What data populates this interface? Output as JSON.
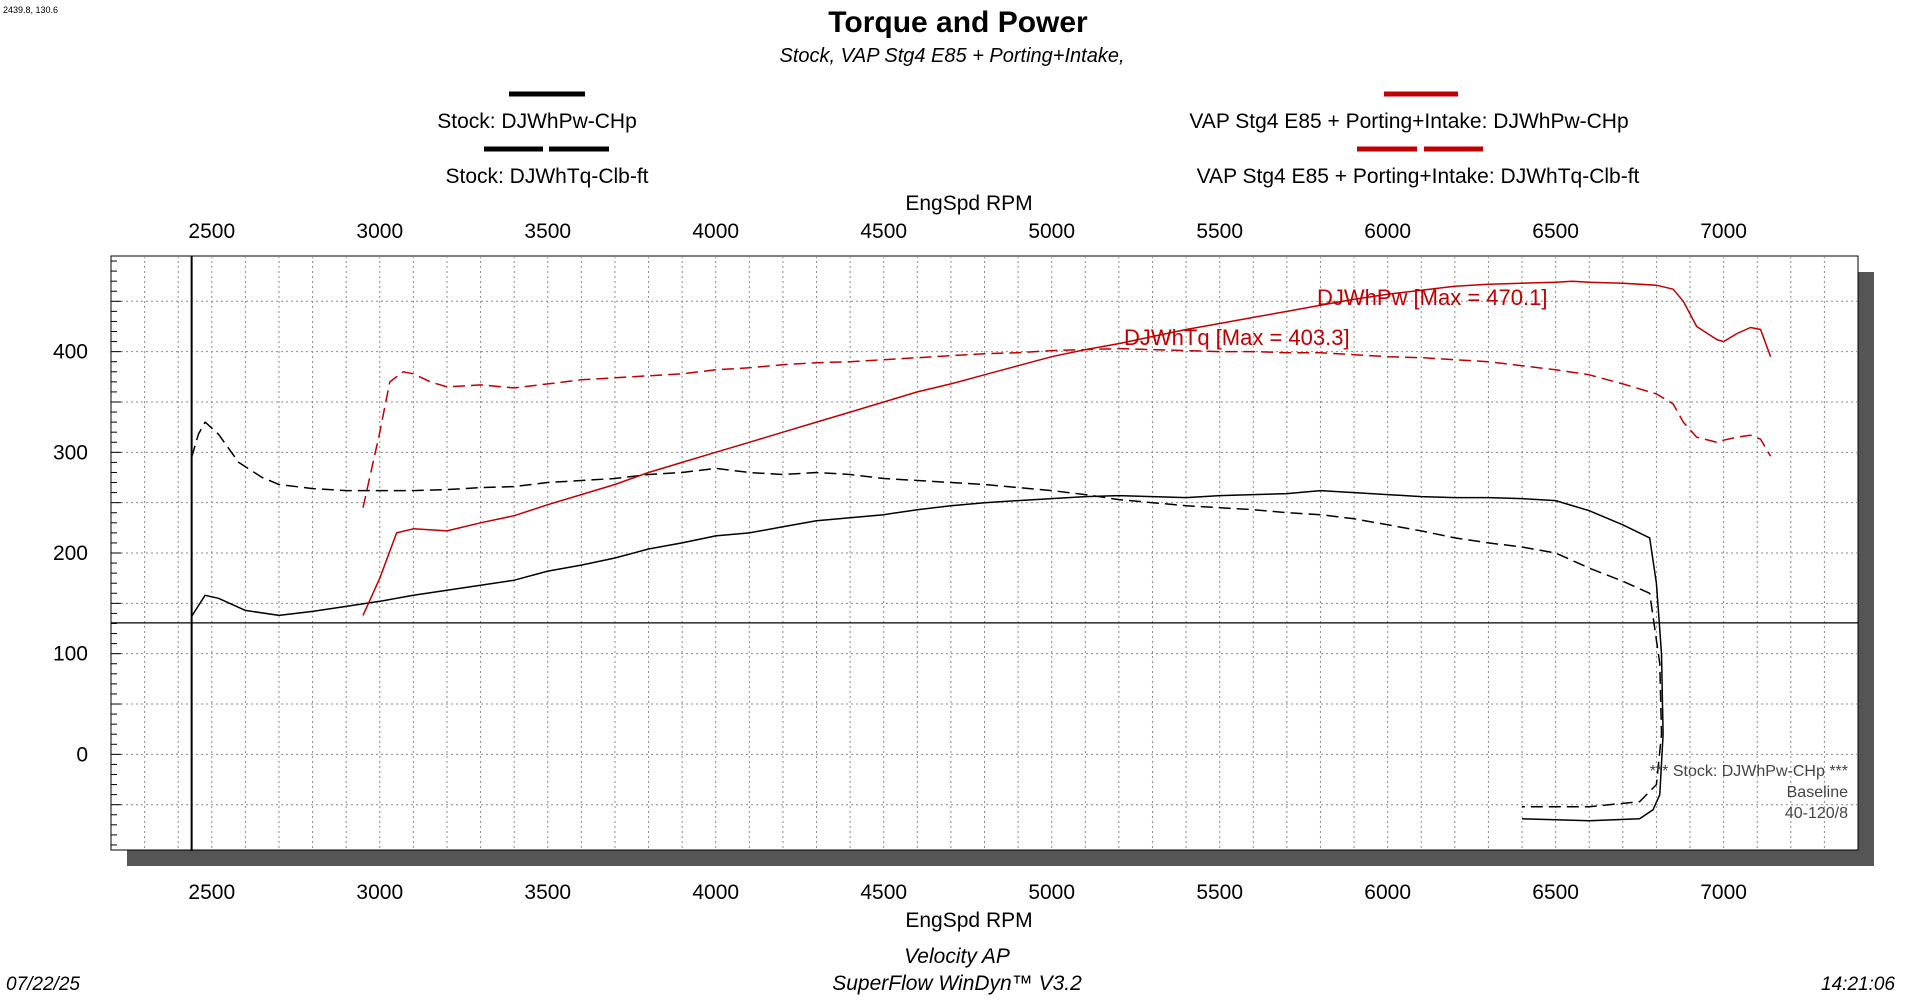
{
  "header": {
    "coords": "2439.8, 130.6",
    "title": "Torque and Power",
    "subtitle": "Stock, VAP Stg4 E85 + Porting+Intake,"
  },
  "legend": {
    "items": [
      {
        "text": "Stock: DJWhPw-CHp",
        "color": "#000000",
        "dash": false
      },
      {
        "text": "Stock: DJWhTq-Clb-ft",
        "color": "#000000",
        "dash": true
      },
      {
        "text": "VAP Stg4 E85 + Porting+Intake: DJWhPw-CHp",
        "color": "#c00000",
        "dash": false
      },
      {
        "text": "VAP Stg4 E85 + Porting+Intake: DJWhTq-Clb-ft",
        "color": "#c00000",
        "dash": true
      }
    ]
  },
  "annotations": {
    "power_max": "DJWhPw [Max = 470.1]",
    "torque_max": "DJWhTq [Max = 403.3]",
    "baseline_note": "*** Stock: DJWhPw-CHp      ***",
    "baseline": "Baseline",
    "ratio": "40-120/8"
  },
  "footer": {
    "date": "07/22/25",
    "line1": "Velocity AP",
    "line2": "SuperFlow WinDyn™ V3.2",
    "time": "14:21:06"
  },
  "chart_data": {
    "type": "line",
    "xlabel": "EngSpd RPM",
    "ylabel": "",
    "xlim": [
      2200,
      7400
    ],
    "ylim": [
      -95,
      495
    ],
    "x_ticks": [
      2500,
      3000,
      3500,
      4000,
      4500,
      5000,
      5500,
      6000,
      6500,
      7000
    ],
    "y_ticks": [
      0,
      100,
      200,
      300,
      400
    ],
    "cursor_x": 2440,
    "cursor_y": 130.6,
    "grid": true,
    "series": [
      {
        "name": "Stock: DJWhPw-CHp",
        "color": "#000000",
        "dash": false,
        "points": [
          [
            2440,
            137
          ],
          [
            2480,
            158
          ],
          [
            2520,
            155
          ],
          [
            2600,
            143
          ],
          [
            2700,
            138
          ],
          [
            2800,
            142
          ],
          [
            2900,
            147
          ],
          [
            3000,
            152
          ],
          [
            3100,
            158
          ],
          [
            3200,
            163
          ],
          [
            3300,
            168
          ],
          [
            3400,
            173
          ],
          [
            3500,
            182
          ],
          [
            3600,
            188
          ],
          [
            3700,
            195
          ],
          [
            3800,
            204
          ],
          [
            3900,
            210
          ],
          [
            4000,
            217
          ],
          [
            4100,
            220
          ],
          [
            4200,
            226
          ],
          [
            4300,
            232
          ],
          [
            4400,
            235
          ],
          [
            4500,
            238
          ],
          [
            4600,
            243
          ],
          [
            4700,
            247
          ],
          [
            4800,
            250
          ],
          [
            4900,
            252
          ],
          [
            5000,
            254
          ],
          [
            5100,
            256
          ],
          [
            5200,
            257
          ],
          [
            5300,
            256
          ],
          [
            5400,
            255
          ],
          [
            5500,
            257
          ],
          [
            5600,
            258
          ],
          [
            5700,
            259
          ],
          [
            5800,
            262
          ],
          [
            5900,
            260
          ],
          [
            6000,
            258
          ],
          [
            6100,
            256
          ],
          [
            6200,
            255
          ],
          [
            6300,
            255
          ],
          [
            6400,
            254
          ],
          [
            6500,
            252
          ],
          [
            6600,
            242
          ],
          [
            6700,
            228
          ],
          [
            6780,
            215
          ],
          [
            6800,
            170
          ],
          [
            6815,
            100
          ],
          [
            6820,
            20
          ],
          [
            6810,
            -40
          ],
          [
            6790,
            -55
          ],
          [
            6750,
            -64
          ],
          [
            6600,
            -66
          ],
          [
            6500,
            -65
          ],
          [
            6400,
            -64
          ]
        ]
      },
      {
        "name": "Stock: DJWhTq-Clb-ft",
        "color": "#000000",
        "dash": true,
        "points": [
          [
            2440,
            295
          ],
          [
            2460,
            318
          ],
          [
            2480,
            330
          ],
          [
            2520,
            318
          ],
          [
            2580,
            290
          ],
          [
            2650,
            275
          ],
          [
            2700,
            268
          ],
          [
            2800,
            264
          ],
          [
            2900,
            262
          ],
          [
            3000,
            262
          ],
          [
            3100,
            262
          ],
          [
            3200,
            263
          ],
          [
            3300,
            265
          ],
          [
            3400,
            266
          ],
          [
            3500,
            270
          ],
          [
            3600,
            272
          ],
          [
            3700,
            274
          ],
          [
            3800,
            278
          ],
          [
            3900,
            280
          ],
          [
            4000,
            284
          ],
          [
            4100,
            280
          ],
          [
            4200,
            278
          ],
          [
            4300,
            280
          ],
          [
            4400,
            278
          ],
          [
            4500,
            274
          ],
          [
            4600,
            272
          ],
          [
            4700,
            270
          ],
          [
            4800,
            268
          ],
          [
            4900,
            265
          ],
          [
            5000,
            262
          ],
          [
            5100,
            258
          ],
          [
            5200,
            253
          ],
          [
            5300,
            250
          ],
          [
            5400,
            247
          ],
          [
            5500,
            245
          ],
          [
            5600,
            243
          ],
          [
            5700,
            240
          ],
          [
            5800,
            238
          ],
          [
            5900,
            234
          ],
          [
            6000,
            228
          ],
          [
            6100,
            222
          ],
          [
            6200,
            215
          ],
          [
            6300,
            210
          ],
          [
            6400,
            206
          ],
          [
            6500,
            200
          ],
          [
            6600,
            185
          ],
          [
            6700,
            172
          ],
          [
            6780,
            160
          ],
          [
            6810,
            90
          ],
          [
            6815,
            20
          ],
          [
            6800,
            -30
          ],
          [
            6750,
            -47
          ],
          [
            6600,
            -52
          ],
          [
            6500,
            -52
          ],
          [
            6400,
            -52
          ]
        ]
      },
      {
        "name": "VAP Stg4 E85 + Porting+Intake: DJWhPw-CHp",
        "color": "#c00000",
        "dash": false,
        "points": [
          [
            2950,
            138
          ],
          [
            3000,
            175
          ],
          [
            3050,
            220
          ],
          [
            3100,
            224
          ],
          [
            3200,
            222
          ],
          [
            3300,
            230
          ],
          [
            3400,
            237
          ],
          [
            3500,
            248
          ],
          [
            3600,
            258
          ],
          [
            3700,
            268
          ],
          [
            3800,
            280
          ],
          [
            3900,
            290
          ],
          [
            4000,
            300
          ],
          [
            4100,
            310
          ],
          [
            4200,
            320
          ],
          [
            4300,
            330
          ],
          [
            4400,
            340
          ],
          [
            4500,
            350
          ],
          [
            4600,
            360
          ],
          [
            4700,
            368
          ],
          [
            4800,
            377
          ],
          [
            4900,
            386
          ],
          [
            5000,
            395
          ],
          [
            5100,
            402
          ],
          [
            5200,
            408
          ],
          [
            5300,
            415
          ],
          [
            5400,
            422
          ],
          [
            5500,
            428
          ],
          [
            5600,
            434
          ],
          [
            5700,
            440
          ],
          [
            5800,
            446
          ],
          [
            5900,
            452
          ],
          [
            6000,
            457
          ],
          [
            6100,
            461
          ],
          [
            6200,
            465
          ],
          [
            6300,
            467
          ],
          [
            6400,
            468
          ],
          [
            6500,
            469
          ],
          [
            6550,
            470
          ],
          [
            6600,
            469
          ],
          [
            6700,
            468
          ],
          [
            6800,
            466
          ],
          [
            6850,
            462
          ],
          [
            6880,
            450
          ],
          [
            6920,
            425
          ],
          [
            6980,
            412
          ],
          [
            7000,
            410
          ],
          [
            7040,
            418
          ],
          [
            7080,
            424
          ],
          [
            7110,
            422
          ],
          [
            7140,
            395
          ]
        ]
      },
      {
        "name": "VAP Stg4 E85 + Porting+Intake: DJWhTq-Clb-ft",
        "color": "#c00000",
        "dash": true,
        "points": [
          [
            2950,
            245
          ],
          [
            3000,
            320
          ],
          [
            3030,
            370
          ],
          [
            3070,
            380
          ],
          [
            3100,
            378
          ],
          [
            3150,
            370
          ],
          [
            3200,
            365
          ],
          [
            3300,
            367
          ],
          [
            3400,
            364
          ],
          [
            3500,
            368
          ],
          [
            3600,
            372
          ],
          [
            3700,
            374
          ],
          [
            3800,
            376
          ],
          [
            3900,
            378
          ],
          [
            4000,
            382
          ],
          [
            4100,
            384
          ],
          [
            4200,
            387
          ],
          [
            4300,
            389
          ],
          [
            4400,
            390
          ],
          [
            4500,
            392
          ],
          [
            4600,
            394
          ],
          [
            4700,
            396
          ],
          [
            4800,
            398
          ],
          [
            4900,
            399
          ],
          [
            5000,
            401
          ],
          [
            5100,
            402
          ],
          [
            5200,
            403
          ],
          [
            5300,
            402
          ],
          [
            5400,
            401
          ],
          [
            5500,
            400
          ],
          [
            5600,
            400
          ],
          [
            5700,
            399
          ],
          [
            5800,
            399
          ],
          [
            5900,
            397
          ],
          [
            6000,
            395
          ],
          [
            6100,
            394
          ],
          [
            6200,
            392
          ],
          [
            6300,
            390
          ],
          [
            6400,
            386
          ],
          [
            6500,
            382
          ],
          [
            6600,
            377
          ],
          [
            6700,
            368
          ],
          [
            6800,
            358
          ],
          [
            6850,
            348
          ],
          [
            6880,
            330
          ],
          [
            6920,
            315
          ],
          [
            6980,
            310
          ],
          [
            7000,
            312
          ],
          [
            7040,
            315
          ],
          [
            7080,
            317
          ],
          [
            7110,
            313
          ],
          [
            7140,
            296
          ]
        ]
      }
    ]
  }
}
